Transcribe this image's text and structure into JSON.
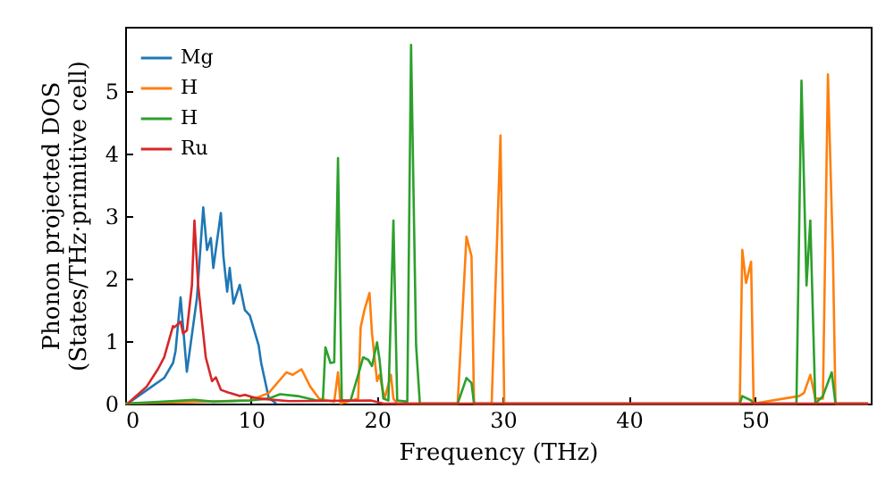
{
  "chart_data": {
    "type": "line",
    "xlabel": "Frequency (THz)",
    "ylabel": "Phonon projected DOS\n(States/THz·primitive cell)",
    "xlim": [
      0,
      59.2
    ],
    "ylim": [
      0,
      6.03
    ],
    "xticks": [
      0,
      10,
      20,
      30,
      40,
      50
    ],
    "yticks": [
      0,
      1,
      2,
      3,
      4,
      5
    ],
    "grid": false,
    "legend": "top left",
    "marker": "none",
    "line_style": "solid",
    "series": [
      {
        "name": "Mg",
        "color": "#1f77b4",
        "x": [
          0.2,
          2.1,
          3.1,
          3.8,
          4.0,
          4.4,
          4.6,
          4.9,
          5.7,
          6.2,
          6.5,
          6.8,
          7.0,
          7.6,
          7.8,
          8.1,
          8.3,
          8.6,
          9.1,
          9.5,
          9.9,
          10.6,
          10.8,
          11.4,
          12.0
        ],
        "values": [
          0,
          0.27,
          0.41,
          0.65,
          0.84,
          1.7,
          1.22,
          0.51,
          1.69,
          3.14,
          2.46,
          2.65,
          2.17,
          3.05,
          2.36,
          1.79,
          2.17,
          1.6,
          1.9,
          1.5,
          1.41,
          0.93,
          0.65,
          0.09,
          0
        ]
      },
      {
        "name": "H",
        "color": "#ff7f0e",
        "x": [
          0,
          9.9,
          11.4,
          12.8,
          13.3,
          14.0,
          14.7,
          15.4,
          16.6,
          16.9,
          17.1,
          18.5,
          18.7,
          19.0,
          19.4,
          19.6,
          20.0,
          20.2,
          20.6,
          21.1,
          21.3,
          21.6,
          26.4,
          27.1,
          27.5,
          27.7,
          29.1,
          29.8,
          30.1,
          48.8,
          49.0,
          49.3,
          49.7,
          49.9,
          53.5,
          53.9,
          54.4,
          54.8,
          55.4,
          55.8,
          56.2,
          56.4,
          59
        ],
        "values": [
          0,
          0.05,
          0.17,
          0.5,
          0.46,
          0.55,
          0.27,
          0.08,
          0.03,
          0.5,
          0,
          0.08,
          1.22,
          1.5,
          1.77,
          1.12,
          0.36,
          0.46,
          0.08,
          0.46,
          0.08,
          0,
          0,
          2.67,
          2.36,
          0,
          0,
          4.29,
          0,
          0,
          2.46,
          1.93,
          2.27,
          0,
          0.12,
          0.17,
          0.46,
          0.08,
          0.08,
          5.27,
          2.36,
          0,
          0
        ]
      },
      {
        "name": "H",
        "color": "#2ca02c",
        "x": [
          0,
          3,
          5.5,
          7,
          9.9,
          11.4,
          12.3,
          13.7,
          15.2,
          15.7,
          15.9,
          16.3,
          16.6,
          16.9,
          17.2,
          17.9,
          18.5,
          18.9,
          19.3,
          19.6,
          20.0,
          20.2,
          20.5,
          20.9,
          21.3,
          21.6,
          22.4,
          22.7,
          23.1,
          23.4,
          26.4,
          27.1,
          27.5,
          27.7,
          48.8,
          49.0,
          49.7,
          49.9,
          53.3,
          53.7,
          54.1,
          54.4,
          54.8,
          55.4,
          56.1,
          56.4,
          59
        ],
        "values": [
          0,
          0.03,
          0.06,
          0.03,
          0.05,
          0.08,
          0.15,
          0.12,
          0.05,
          0.05,
          0.9,
          0.65,
          0.66,
          3.93,
          0.05,
          0.05,
          0.46,
          0.74,
          0.7,
          0.6,
          0.98,
          0.7,
          0.08,
          0.05,
          2.93,
          0.05,
          0.03,
          5.74,
          0.93,
          0,
          0,
          0.41,
          0.33,
          0,
          0,
          0.12,
          0.05,
          0,
          0,
          5.17,
          1.89,
          2.93,
          0,
          0.12,
          0.5,
          0,
          0
        ]
      },
      {
        "name": "Ru",
        "color": "#d62728",
        "x": [
          0.2,
          1.7,
          2.6,
          3.1,
          3.8,
          3.9,
          4.4,
          4.6,
          4.9,
          5.3,
          5.5,
          5.8,
          6.1,
          6.4,
          6.9,
          7.2,
          7.6,
          8.3,
          9.1,
          9.5,
          10.0,
          10.6,
          13,
          19.5,
          20.5,
          30,
          40,
          50,
          59
        ],
        "values": [
          0,
          0.27,
          0.55,
          0.74,
          1.24,
          1.22,
          1.31,
          1.12,
          1.17,
          1.89,
          2.93,
          1.89,
          1.31,
          0.74,
          0.36,
          0.42,
          0.22,
          0.17,
          0.12,
          0.14,
          0.11,
          0.08,
          0.04,
          0.05,
          0,
          0,
          0,
          0,
          0
        ]
      }
    ]
  }
}
